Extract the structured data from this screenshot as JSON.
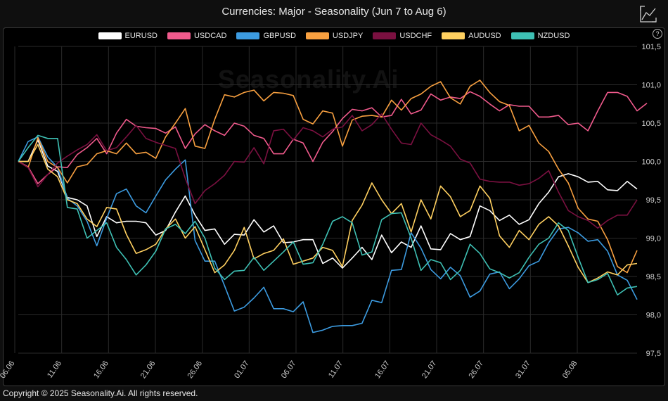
{
  "header": {
    "title": "Currencies: Major - Seasonality (Jun 7 to Aug 6)"
  },
  "footer": {
    "copyright": "Copyright © 2025 Seasonality.Ai. All rights reserved."
  },
  "watermark": "Seasonality.Ai",
  "help_label": "?",
  "chart_data": {
    "type": "line",
    "title": "Currencies: Major - Seasonality (Jun 7 to Aug 6)",
    "xlabel": "",
    "ylabel": "",
    "ylim": [
      97.5,
      101.5
    ],
    "y_ticks": [
      "97,5",
      "98,0",
      "98,5",
      "99,0",
      "99,5",
      "100,0",
      "100,5",
      "101,0",
      "101,5"
    ],
    "y_tick_values": [
      97.5,
      98.0,
      98.5,
      99.0,
      99.5,
      100.0,
      100.5,
      101.0,
      101.5
    ],
    "x_ticks": [
      "06.06",
      "11.06",
      "16.06",
      "21.06",
      "26.06",
      "01.07",
      "06.07",
      "11.07",
      "16.07",
      "21.07",
      "26.07",
      "31.07",
      "05.08"
    ],
    "grid": true,
    "legend_position": "top",
    "background": "#000000",
    "series": [
      {
        "name": "EURUSD",
        "color": "#ffffff",
        "values": [
          100.0,
          100.0,
          100.28,
          99.94,
          99.87,
          99.53,
          99.5,
          99.42,
          99.02,
          99.28,
          99.2,
          99.22,
          99.22,
          99.2,
          99.04,
          99.1,
          99.34,
          99.55,
          99.3,
          99.1,
          99.12,
          98.92,
          99.05,
          99.04,
          99.24,
          99.08,
          99.16,
          98.94,
          98.95,
          98.98,
          98.98,
          98.67,
          98.74,
          98.61,
          98.74,
          98.88,
          98.72,
          99.04,
          98.81,
          98.95,
          98.88,
          99.16,
          98.86,
          98.85,
          99.06,
          98.98,
          99.02,
          99.42,
          99.36,
          99.23,
          99.3,
          99.18,
          99.24,
          99.45,
          99.6,
          99.8,
          99.84,
          99.8,
          99.73,
          99.74,
          99.63,
          99.62,
          99.74,
          99.64
        ]
      },
      {
        "name": "USDCAD",
        "color": "#f05a8c",
        "values": [
          100.0,
          99.93,
          99.71,
          99.83,
          99.93,
          99.92,
          100.09,
          100.18,
          100.3,
          100.1,
          100.37,
          100.55,
          100.46,
          100.44,
          100.43,
          100.37,
          100.45,
          100.17,
          100.36,
          100.48,
          100.4,
          100.34,
          100.5,
          100.46,
          100.34,
          100.3,
          100.1,
          100.1,
          100.29,
          100.24,
          100.0,
          100.25,
          100.39,
          100.56,
          100.68,
          100.66,
          100.7,
          100.58,
          100.6,
          100.81,
          100.62,
          100.67,
          100.88,
          100.8,
          100.84,
          100.82,
          100.91,
          100.85,
          100.75,
          100.66,
          100.74,
          100.72,
          100.72,
          100.58,
          100.58,
          100.6,
          100.48,
          100.5,
          100.4,
          100.66,
          100.9,
          100.9,
          100.85,
          100.66,
          100.76
        ]
      },
      {
        "name": "GBPUSD",
        "color": "#3c9be0",
        "values": [
          100.0,
          100.26,
          100.32,
          100.06,
          99.92,
          99.52,
          99.42,
          99.22,
          98.9,
          99.26,
          99.58,
          99.64,
          99.42,
          99.33,
          99.55,
          99.76,
          99.9,
          100.02,
          98.97,
          98.7,
          98.7,
          98.38,
          98.05,
          98.1,
          98.22,
          98.36,
          98.08,
          98.08,
          98.04,
          98.17,
          97.77,
          97.8,
          97.85,
          97.86,
          97.86,
          97.89,
          98.19,
          98.16,
          98.58,
          98.59,
          99.07,
          98.87,
          98.59,
          98.47,
          98.62,
          98.51,
          98.23,
          98.31,
          98.53,
          98.56,
          98.34,
          98.47,
          98.64,
          98.7,
          98.94,
          99.12,
          99.14,
          99.07,
          98.96,
          98.98,
          98.83,
          98.52,
          98.45,
          98.2
        ]
      },
      {
        "name": "USDJPY",
        "color": "#f8a040",
        "values": [
          100.0,
          99.92,
          100.31,
          100.0,
          99.92,
          99.72,
          99.93,
          99.96,
          100.1,
          100.14,
          100.1,
          100.24,
          100.1,
          100.12,
          100.04,
          100.32,
          100.5,
          100.69,
          100.2,
          100.17,
          100.55,
          100.87,
          100.84,
          100.9,
          100.93,
          100.79,
          100.9,
          100.89,
          100.86,
          100.55,
          100.49,
          100.66,
          100.63,
          100.2,
          100.54,
          100.59,
          100.6,
          100.58,
          100.8,
          100.67,
          100.82,
          100.88,
          100.98,
          101.04,
          100.83,
          100.75,
          100.98,
          101.06,
          100.9,
          100.78,
          100.73,
          100.4,
          100.47,
          100.24,
          100.13,
          99.9,
          99.72,
          99.39,
          99.25,
          99.22,
          98.98,
          98.63,
          98.55,
          98.84
        ]
      },
      {
        "name": "USDCHF",
        "color": "#7a1040",
        "values": [
          100.0,
          99.92,
          99.67,
          99.83,
          99.98,
          100.07,
          100.15,
          100.22,
          100.35,
          100.14,
          100.18,
          100.32,
          100.47,
          100.3,
          100.25,
          100.21,
          100.17,
          99.78,
          99.45,
          99.62,
          99.71,
          99.82,
          100.0,
          99.99,
          100.18,
          99.97,
          100.4,
          100.42,
          100.28,
          100.44,
          100.4,
          100.32,
          100.42,
          100.45,
          100.6,
          100.4,
          100.48,
          100.62,
          100.42,
          100.24,
          100.22,
          100.5,
          100.35,
          100.28,
          100.2,
          100.03,
          99.98,
          99.77,
          99.74,
          99.73,
          99.73,
          99.69,
          99.71,
          99.78,
          99.88,
          99.6,
          99.36,
          99.28,
          99.23,
          99.13,
          99.23,
          99.3,
          99.3,
          99.5
        ]
      },
      {
        "name": "AUDUSD",
        "color": "#ffd060",
        "values": [
          100.0,
          100.0,
          100.22,
          99.9,
          99.8,
          99.5,
          99.45,
          99.25,
          99.15,
          99.4,
          99.38,
          99.05,
          98.8,
          98.85,
          98.92,
          99.12,
          99.25,
          99.0,
          99.15,
          98.85,
          98.55,
          98.65,
          98.84,
          99.14,
          98.73,
          98.8,
          98.84,
          98.99,
          98.66,
          98.7,
          98.74,
          98.88,
          98.84,
          98.63,
          99.23,
          99.43,
          99.72,
          99.5,
          99.32,
          99.45,
          99.08,
          99.5,
          99.25,
          99.68,
          99.54,
          99.28,
          99.36,
          99.68,
          99.52,
          99.03,
          98.88,
          99.1,
          98.98,
          99.18,
          99.28,
          99.16,
          98.9,
          98.62,
          98.42,
          98.48,
          98.56,
          98.52,
          98.65,
          98.67
        ]
      },
      {
        "name": "NZDUSD",
        "color": "#3ec0b4",
        "values": [
          100.0,
          100.18,
          100.34,
          100.3,
          100.3,
          99.4,
          99.38,
          99.0,
          99.1,
          99.2,
          98.88,
          98.72,
          98.52,
          98.65,
          98.83,
          99.12,
          99.18,
          99.06,
          99.22,
          99.0,
          98.61,
          98.46,
          98.57,
          98.58,
          98.75,
          98.58,
          98.7,
          98.82,
          98.95,
          98.66,
          98.68,
          98.92,
          99.22,
          99.28,
          99.2,
          98.78,
          98.82,
          99.24,
          99.32,
          99.33,
          99.0,
          98.58,
          98.72,
          98.68,
          98.46,
          98.58,
          98.92,
          98.8,
          98.6,
          98.55,
          98.48,
          98.55,
          98.75,
          98.92,
          99.0,
          99.2,
          99.1,
          98.75,
          98.42,
          98.46,
          98.54,
          98.26,
          98.35,
          98.37
        ]
      }
    ]
  }
}
